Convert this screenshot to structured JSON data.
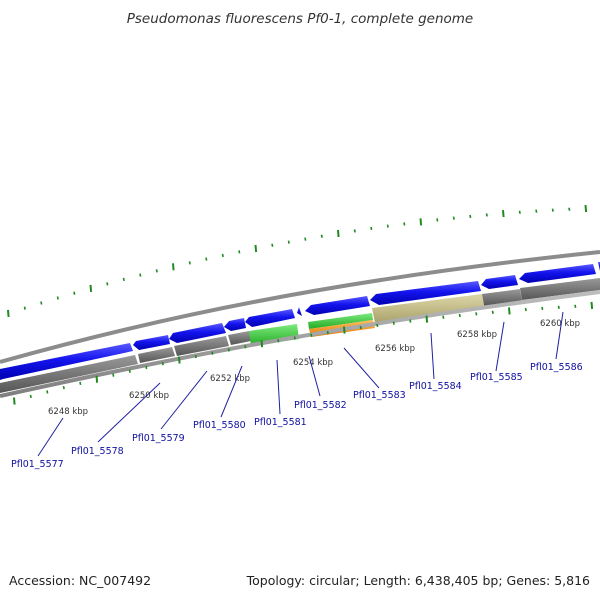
{
  "title": "Pseudomonas fluorescens Pf0-1, complete genome",
  "accession": "Accession: NC_007492",
  "summary": "Topology: circular; Length: 6,438,405 bp; Genes: 5,816",
  "kbp_labels": [
    "6248 kbp",
    "6250 kbp",
    "6252 kbp",
    "6254 kbp",
    "6256 kbp",
    "6258 kbp",
    "6260 kbp"
  ],
  "genes": [
    {
      "label": "Pfl01_5577"
    },
    {
      "label": "Pfl01_5578"
    },
    {
      "label": "Pfl01_5579"
    },
    {
      "label": "Pfl01_5580"
    },
    {
      "label": "Pfl01_5581"
    },
    {
      "label": "Pfl01_5582"
    },
    {
      "label": "Pfl01_5583"
    },
    {
      "label": "Pfl01_5584"
    },
    {
      "label": "Pfl01_5585"
    },
    {
      "label": "Pfl01_5586"
    }
  ],
  "colors": {
    "cds": "#1212e6",
    "rna_green": "#33cc33",
    "rna_orange": "#ff9900",
    "khaki": "#c8c08a",
    "backbone": "#7a7a7a",
    "tick": "#1f8a1f",
    "label": "#1010a0"
  }
}
